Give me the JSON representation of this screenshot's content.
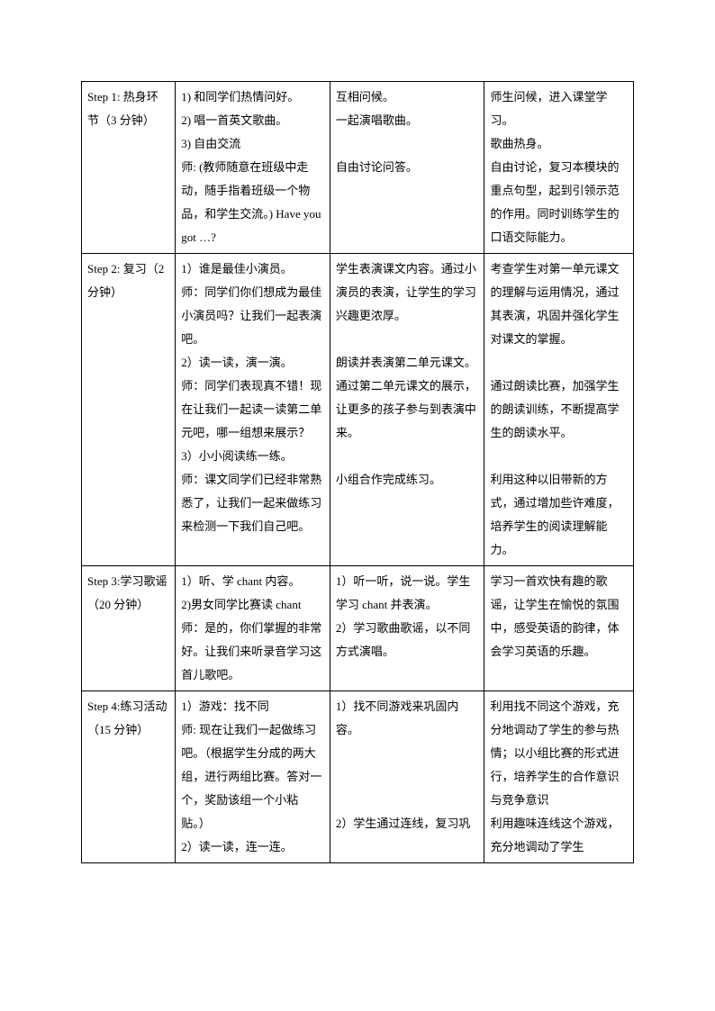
{
  "rows": [
    {
      "step": "Step 1: 热身环节（3 分钟）",
      "teacher": "1) 和同学们热情问好。\n2) 唱一首英文歌曲。\n3) 自由交流\n师: (教师随意在班级中走动，随手指着班级一个物品，和学生交流。) Have you got …?",
      "student": "互相问候。\n一起演唱歌曲。\n\n自由讨论问答。",
      "intent": "师生问候，进入课堂学习。\n歌曲热身。\n自由讨论，复习本模块的重点句型，起到引领示范的作用。同时训练学生的口语交际能力。"
    },
    {
      "step": "Step 2: 复习（2 分钟）",
      "teacher": "1）谁是最佳小演员。\n师：同学们你们想成为最佳小演员吗？让我们一起表演吧。\n2）读一读，演一演。\n师：同学们表现真不错！现在让我们一起读一读第二单元吧，哪一组想来展示？\n3）小小阅读练一练。\n师：课文同学们已经非常熟悉了，让我们一起来做练习来检测一下我们自己吧。",
      "student": "学生表演课文内容。通过小演员的表演，让学生的学习兴趣更浓厚。\n\n朗读并表演第二单元课文。通过第二单元课文的展示，让更多的孩子参与到表演中来。\n\n小组合作完成练习。",
      "intent": "考查学生对第一单元课文的理解与运用情况，通过其表演，巩固并强化学生对课文的掌握。\n\n通过朗读比赛，加强学生的朗读训练，不断提高学生的朗读水平。\n\n利用这种以旧带新的方式，通过增加些许难度，培养学生的阅读理解能力。"
    },
    {
      "step": "Step 3:学习歌谣（20 分钟）",
      "teacher": "1）听、学 chant 内容。\n2)男女同学比赛读 chant\n师：是的，你们掌握的非常好。让我们来听录音学习这首儿歌吧。",
      "student": "1）听一听，说一说。学生学习 chant 并表演。\n2）学习歌曲歌谣，以不同方式演唱。",
      "intent": "学习一首欢快有趣的歌谣，让学生在愉悦的氛围中，感受英语的韵律，体会学习英语的乐趣。"
    },
    {
      "step": "Step 4:练习活动（15 分钟）",
      "teacher": "1）游戏：找不同\n师: 现在让我们一起做练习吧。（根据学生分成的两大组，进行两组比赛。答对一个，奖励该组一个小粘贴。）\n2）读一读，连一连。",
      "student": "1）找不同游戏来巩固内容。\n\n\n\n2）学生通过连线，复习巩",
      "intent": "利用找不同这个游戏，充分地调动了学生的参与热情；以小组比赛的形式进行，培养学生的合作意识与竞争意识\n利用趣味连线这个游戏，充分地调动了学生"
    }
  ]
}
